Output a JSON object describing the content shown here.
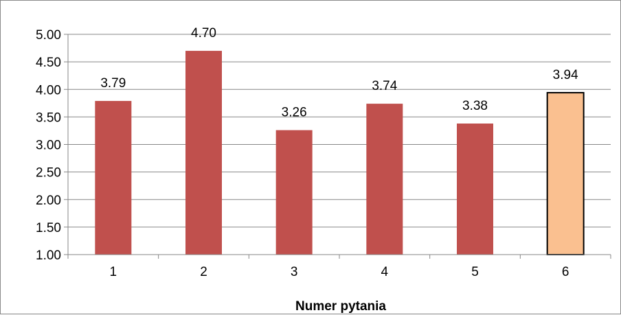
{
  "chart_data": {
    "type": "bar",
    "title": "",
    "xlabel": "Numer pytania",
    "ylabel": "",
    "categories": [
      "1",
      "2",
      "3",
      "4",
      "5",
      "6"
    ],
    "values": [
      3.79,
      4.7,
      3.26,
      3.74,
      3.38,
      3.94
    ],
    "data_labels": [
      "3.79",
      "4.70",
      "3.26",
      "3.74",
      "3.38",
      "3.94"
    ],
    "ylim": [
      1.0,
      5.0
    ],
    "yticks": [
      1.0,
      1.5,
      2.0,
      2.5,
      3.0,
      3.5,
      4.0,
      4.5,
      5.0
    ],
    "ytick_labels": [
      "1.00",
      "1.50",
      "2.00",
      "2.50",
      "3.00",
      "3.50",
      "4.00",
      "4.50",
      "5.00"
    ],
    "grid": true,
    "legend": "none",
    "colors": {
      "bar": "#C0504D",
      "highlight_bar": "#FAC090",
      "highlight_border": "#000000",
      "grid": "#868686",
      "axis": "#868686"
    },
    "highlight_index": 5
  }
}
